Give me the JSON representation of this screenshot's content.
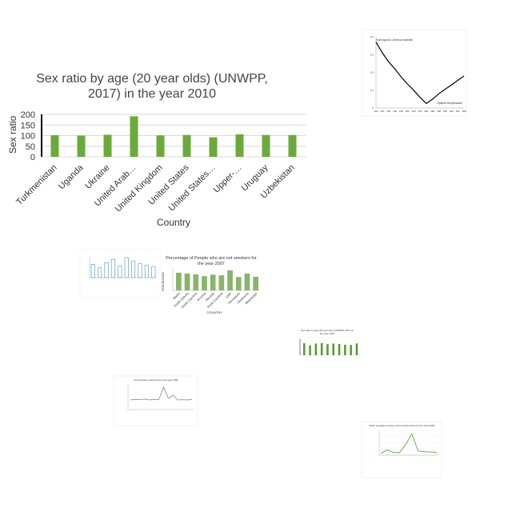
{
  "chart_data": [
    {
      "type": "bar",
      "title": [
        "Sex ratio by age (20 year olds) (UNWPP,",
        "2017) in the year 2010"
      ],
      "xlabel": "Country",
      "ylabel": "Sex ratio",
      "categories": [
        "Turkmenistan",
        "Uganda",
        "Ukraine",
        "United Arab…",
        "United Kingdom",
        "United States",
        "United States…",
        "Upper-…",
        "Uruguay",
        "Uzbekistan"
      ],
      "values": [
        102,
        100,
        104,
        191,
        101,
        103,
        92,
        106,
        103,
        103
      ],
      "ylim": [
        0,
        200
      ],
      "yticks": [
        0,
        50,
        100,
        150,
        200
      ],
      "grid": true,
      "colors": {
        "bar": "#6aaa3a",
        "grid": "#d9d9d9",
        "axis": "#000000"
      }
    },
    {
      "type": "line",
      "title": "Kolmogorov–Smirnov statistic",
      "annotation": "Optimal temperature",
      "x": [
        100,
        120,
        140,
        160,
        180,
        200,
        220,
        240,
        260,
        280,
        300,
        320,
        340,
        360,
        380
      ],
      "values": [
        0.37,
        0.31,
        0.26,
        0.22,
        0.175,
        0.135,
        0.1,
        0.06,
        0.025,
        0.05,
        0.08,
        0.105,
        0.13,
        0.155,
        0.18
      ],
      "xticks": [
        "100",
        "120",
        "140",
        "160",
        "180",
        "200",
        "220",
        "240",
        "260",
        "280",
        "300",
        "320",
        "340",
        "360",
        "380"
      ],
      "yticks": [
        "0",
        "0.1",
        "0.2",
        "0.3",
        "0.4"
      ],
      "ylim": [
        0,
        0.4
      ],
      "colors": {
        "line": "#000000"
      }
    },
    {
      "type": "bar",
      "values": [
        40,
        30,
        45,
        55,
        35,
        60,
        50,
        42,
        38,
        33
      ],
      "colors": {
        "bar": "#ffffff",
        "stroke": "#4a90c8"
      }
    },
    {
      "type": "bar",
      "title": [
        "Percentage of People who are not smokers for",
        "the year 2007"
      ],
      "xlabel": "COUNTRY",
      "ylabel": "PERCENTAGE",
      "categories": [
        "Wales",
        "South Dakota",
        "South Carolina",
        "Arizona",
        "Nevada",
        "North Carolina",
        "Utah",
        "Tennessee",
        "Oklahoma",
        "Mississippi"
      ],
      "values": [
        82,
        78,
        74,
        66,
        73,
        70,
        93,
        62,
        78,
        63
      ],
      "ylim": [
        0,
        100
      ],
      "colors": {
        "bar": "#88b56a"
      }
    },
    {
      "type": "bar",
      "title": [
        "Sex ratio by age (20 year olds) (UNWPP, 2017) in",
        "the year 2007"
      ],
      "values": [
        102,
        85,
        100,
        104,
        95,
        100,
        96,
        90,
        88,
        101
      ],
      "colors": {
        "bar": "#4f9a2a"
      }
    },
    {
      "type": "line",
      "title": "Co2 emission performing in the year 1991",
      "values": [
        30,
        32,
        31,
        33,
        30,
        32,
        31,
        70,
        35,
        45,
        30,
        31,
        30,
        32
      ],
      "colors": {
        "line": "#888888"
      }
    },
    {
      "type": "line",
      "title": "Urban population living in slums (proportion) for the Year 2003",
      "values": [
        5,
        15,
        8,
        7,
        30,
        60,
        12,
        10,
        9,
        8
      ],
      "colors": {
        "line": "#6ab04c"
      }
    }
  ]
}
